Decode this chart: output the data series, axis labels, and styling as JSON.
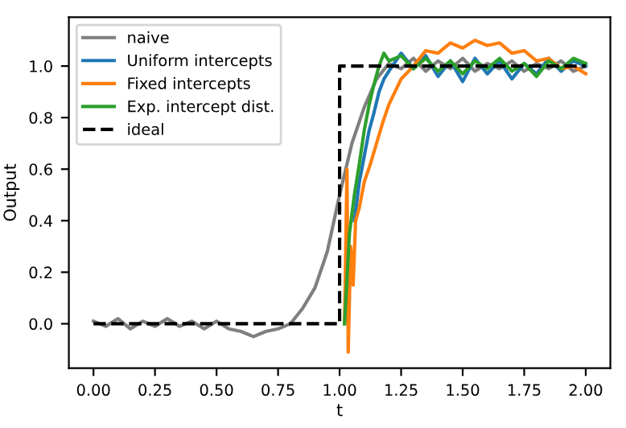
{
  "chart_data": {
    "type": "line",
    "xlabel": "t",
    "ylabel": "Output",
    "xlim": [
      -0.1,
      2.1
    ],
    "ylim": [
      -0.172,
      1.19
    ],
    "xticks": [
      {
        "value": 0,
        "label": "0.00"
      },
      {
        "value": 0.25,
        "label": "0.25"
      },
      {
        "value": 0.5,
        "label": "0.50"
      },
      {
        "value": 0.75,
        "label": "0.75"
      },
      {
        "value": 1,
        "label": "1.00"
      },
      {
        "value": 1.25,
        "label": "1.25"
      },
      {
        "value": 1.5,
        "label": "1.50"
      },
      {
        "value": 1.75,
        "label": "1.75"
      },
      {
        "value": 2,
        "label": "2.00"
      }
    ],
    "yticks": [
      {
        "value": 0,
        "label": "0.0"
      },
      0.2,
      0.4,
      0.6,
      0.8,
      {
        "value": 1,
        "label": "1.0"
      }
    ],
    "grid": false,
    "legend": "top left",
    "marker": "none",
    "series": [
      {
        "name": "naive",
        "color": "#7f7f7f",
        "line_style": "solid",
        "x": [
          0,
          0.05,
          0.1,
          0.15,
          0.2,
          0.25,
          0.3,
          0.35,
          0.4,
          0.45,
          0.5,
          0.55,
          0.6,
          0.65,
          0.7,
          0.75,
          0.8,
          0.85,
          0.9,
          0.95,
          1.0,
          1.05,
          1.1,
          1.15,
          1.2,
          1.25,
          1.3,
          1.35,
          1.4,
          1.45,
          1.5,
          1.55,
          1.6,
          1.65,
          1.7,
          1.75,
          1.8,
          1.85,
          1.9,
          1.95,
          2.0
        ],
        "values": [
          0.01,
          -0.01,
          0.02,
          -0.02,
          0.01,
          -0.01,
          0.02,
          -0.01,
          0.01,
          -0.02,
          0.01,
          -0.02,
          -0.03,
          -0.05,
          -0.03,
          -0.02,
          0.0,
          0.06,
          0.14,
          0.28,
          0.5,
          0.7,
          0.84,
          0.95,
          1.01,
          0.99,
          1.03,
          0.98,
          1.02,
          0.99,
          1.03,
          0.98,
          1.01,
          0.99,
          1.02,
          0.98,
          1.01,
          0.99,
          1.02,
          0.98,
          1.0
        ]
      },
      {
        "name": "Uniform intercepts",
        "color": "#1f77b4",
        "line_style": "solid",
        "x": [
          1.06,
          1.08,
          1.1,
          1.12,
          1.14,
          1.16,
          1.18,
          1.2,
          1.25,
          1.3,
          1.35,
          1.4,
          1.45,
          1.5,
          1.55,
          1.6,
          1.65,
          1.7,
          1.75,
          1.8,
          1.85,
          1.9,
          1.95,
          2.0
        ],
        "values": [
          0.4,
          0.55,
          0.65,
          0.75,
          0.82,
          0.9,
          0.95,
          0.98,
          1.05,
          0.99,
          1.04,
          0.96,
          1.02,
          0.94,
          1.03,
          0.97,
          1.02,
          0.95,
          1.01,
          0.97,
          1.03,
          0.98,
          1.02,
          1.0
        ]
      },
      {
        "name": "Fixed intercepts",
        "color": "#ff7f0e",
        "line_style": "solid",
        "x": [
          1.02,
          1.03,
          1.035,
          1.045,
          1.055,
          1.065,
          1.08,
          1.1,
          1.125,
          1.15,
          1.175,
          1.2,
          1.25,
          1.3,
          1.35,
          1.4,
          1.45,
          1.5,
          1.55,
          1.6,
          1.65,
          1.7,
          1.75,
          1.8,
          1.85,
          1.9,
          1.95,
          2.0
        ],
        "values": [
          0.0,
          0.6,
          -0.11,
          0.3,
          0.15,
          0.4,
          0.45,
          0.55,
          0.62,
          0.7,
          0.78,
          0.85,
          0.95,
          1.0,
          1.06,
          1.05,
          1.09,
          1.07,
          1.1,
          1.08,
          1.09,
          1.05,
          1.06,
          1.02,
          1.03,
          0.99,
          1.0,
          0.97
        ]
      },
      {
        "name": "Exp. intercept dist.",
        "color": "#2ca02c",
        "line_style": "solid",
        "x": [
          1.02,
          1.04,
          1.06,
          1.08,
          1.1,
          1.12,
          1.14,
          1.16,
          1.18,
          1.2,
          1.25,
          1.3,
          1.35,
          1.4,
          1.45,
          1.5,
          1.55,
          1.6,
          1.65,
          1.7,
          1.75,
          1.8,
          1.85,
          1.9,
          1.95,
          2.0
        ],
        "values": [
          0.0,
          0.35,
          0.5,
          0.62,
          0.75,
          0.85,
          0.93,
          1.0,
          1.05,
          1.02,
          1.04,
          0.99,
          1.03,
          0.98,
          1.02,
          0.97,
          1.02,
          0.99,
          1.03,
          0.98,
          1.01,
          0.96,
          1.02,
          0.99,
          1.03,
          1.01
        ]
      },
      {
        "name": "ideal",
        "color": "#000000",
        "line_style": "dashed",
        "x": [
          0,
          1,
          1,
          2
        ],
        "values": [
          0,
          0,
          1,
          1
        ]
      }
    ]
  }
}
